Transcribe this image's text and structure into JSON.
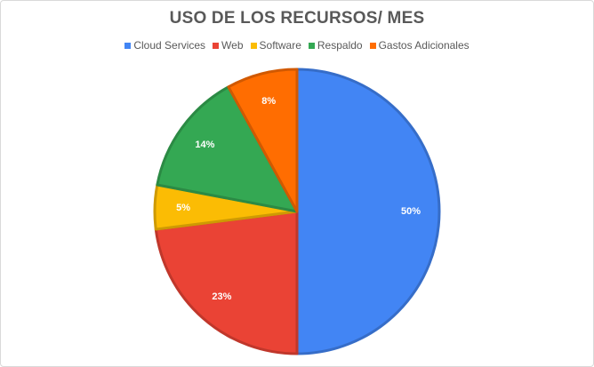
{
  "chart_data": {
    "type": "pie",
    "title": "USO DE LOS RECURSOS/ MES",
    "legend_position": "top",
    "slices": [
      {
        "name": "Cloud Services",
        "value": 50,
        "label": "50%",
        "color": "#4285f4"
      },
      {
        "name": "Web",
        "value": 23,
        "label": "23%",
        "color": "#ea4335"
      },
      {
        "name": "Software",
        "value": 5,
        "label": "5%",
        "color": "#fbbc04"
      },
      {
        "name": "Respaldo",
        "value": 14,
        "label": "14%",
        "color": "#34a853"
      },
      {
        "name": "Gastos Adicionales",
        "value": 8,
        "label": "8%",
        "color": "#ff6d01"
      }
    ]
  }
}
